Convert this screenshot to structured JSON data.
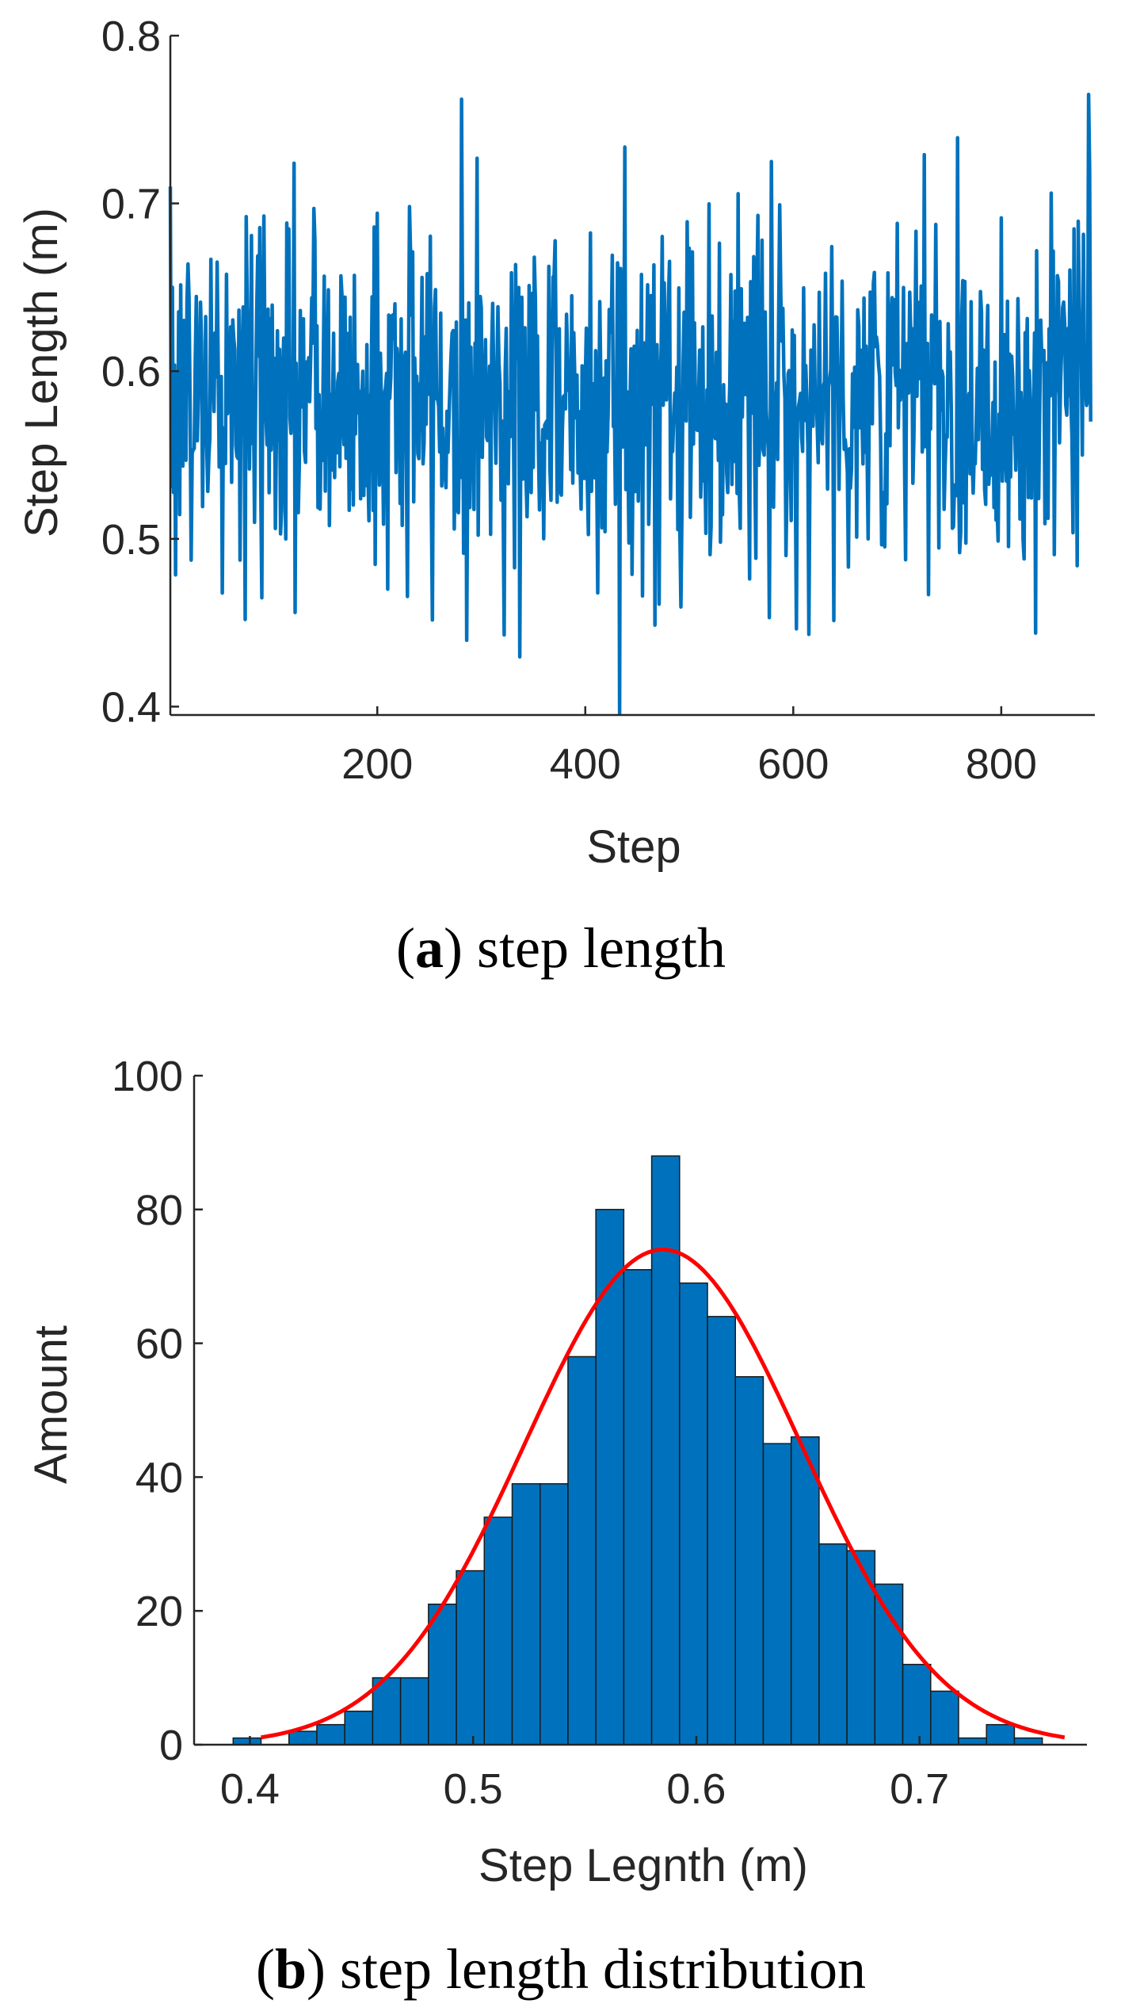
{
  "colors": {
    "line": "#0072BD",
    "bar": "#0072BD",
    "bar_edge": "#1a1a1a",
    "fit": "#FF0000",
    "axis": "#262626"
  },
  "chart_data": [
    {
      "id": "a",
      "type": "line",
      "xlabel": "Step",
      "ylabel": "Step Length (m)",
      "xlim": [
        1,
        890
      ],
      "ylim": [
        0.395,
        0.8
      ],
      "xticks": [
        200,
        400,
        600,
        800
      ],
      "yticks": [
        0.4,
        0.5,
        0.6,
        0.7,
        0.8
      ],
      "n_points": 886,
      "mean": 0.585,
      "std": 0.055,
      "min": 0.396,
      "max": 0.765,
      "caption_letter": "a",
      "caption_text": ") step length"
    },
    {
      "id": "b",
      "type": "bar",
      "xlabel": "Step Legnth (m)",
      "ylabel": "Amount",
      "xlim": [
        0.375,
        0.775
      ],
      "ylim": [
        0,
        100
      ],
      "xticks": [
        0.4,
        0.5,
        0.6,
        0.7
      ],
      "yticks": [
        0,
        20,
        40,
        60,
        80,
        100
      ],
      "bin_width": 0.0125,
      "bin_edges_start": 0.3925,
      "values": [
        1,
        0,
        2,
        3,
        5,
        10,
        10,
        21,
        26,
        34,
        39,
        39,
        58,
        80,
        71,
        88,
        69,
        64,
        55,
        45,
        46,
        30,
        29,
        24,
        12,
        8,
        1,
        3,
        1
      ],
      "fit": {
        "type": "normal",
        "mu": 0.585,
        "peak": 74,
        "sigma": 0.062,
        "x_range": [
          0.405,
          0.765
        ]
      },
      "caption_letter": "b",
      "caption_text": ") step length distribution"
    }
  ]
}
